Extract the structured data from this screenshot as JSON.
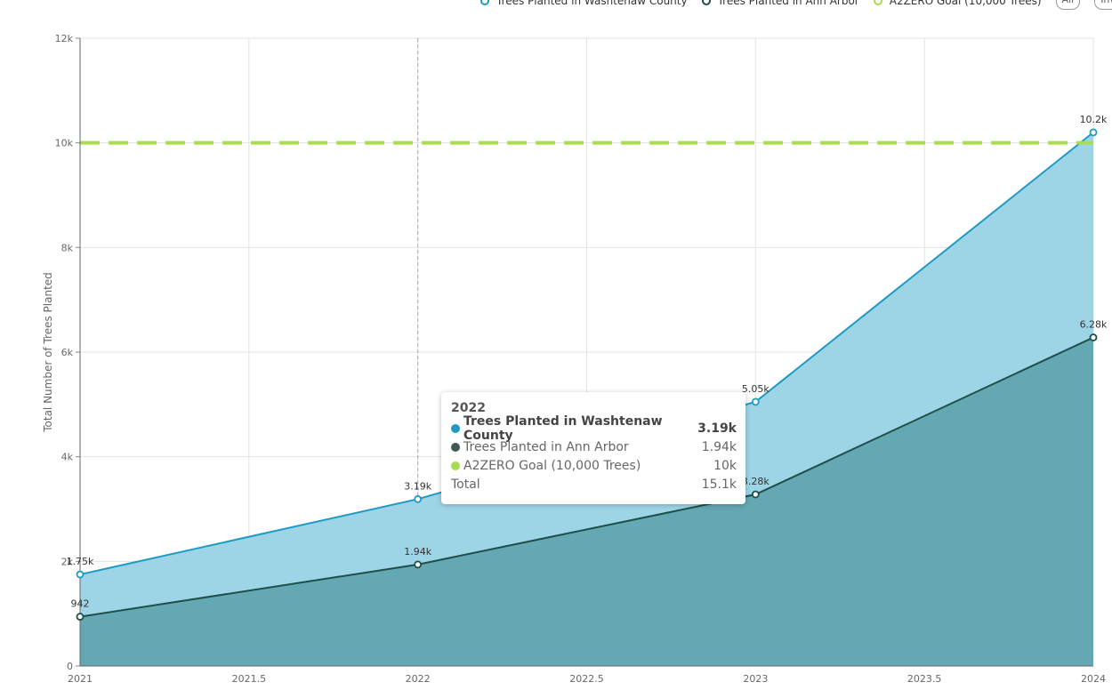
{
  "chart_data": {
    "type": "area",
    "title": "",
    "xlabel": "",
    "ylabel": "Total Number of Trees Planted",
    "xlim": [
      2021,
      2024
    ],
    "ylim": [
      0,
      12000
    ],
    "x_ticks": [
      "2021",
      "2021.5",
      "2022",
      "2022.5",
      "2023",
      "2023.5",
      "2024"
    ],
    "y_ticks": [
      "0",
      "2k",
      "4k",
      "6k",
      "8k",
      "10k",
      "12k"
    ],
    "x": [
      2021,
      2022,
      2023,
      2024
    ],
    "series": [
      {
        "name": "Trees Planted in Washtenaw County",
        "color": "#1f9ac4",
        "fill": "#9dd4e6",
        "values": [
          1750,
          3190,
          5050,
          10200
        ],
        "labels": [
          "1.75k",
          "3.19k",
          "5.05k",
          "10.2k"
        ]
      },
      {
        "name": "Trees Planted in Ann Arbor",
        "color": "#1f4f4a",
        "fill": "#64a8b4",
        "values": [
          942,
          1940,
          3280,
          6280
        ],
        "labels": [
          "942",
          "1.94k",
          "3.28k",
          "6.28k"
        ]
      },
      {
        "name": "A2ZERO Goal (10,000 Trees)",
        "color": "#a8dd4f",
        "dashed": true,
        "values": [
          10000,
          10000,
          10000,
          10000
        ]
      }
    ],
    "legend_position": "top-right",
    "grid": true
  },
  "legend": {
    "items": [
      {
        "label": "Trees Planted in Washtenaw County",
        "color": "#1f9ac4"
      },
      {
        "label": "Trees Planted in Ann Arbor",
        "color": "#1f4f4a"
      },
      {
        "label": "A2ZERO Goal (10,000 Trees)",
        "color": "#a8dd4f"
      }
    ],
    "btn_all": "All",
    "btn_inv": "Inv"
  },
  "tooltip": {
    "title": "2022",
    "rows": [
      {
        "label": "Trees Planted in Washtenaw County",
        "value": "3.19k",
        "color": "#1f9ac4"
      },
      {
        "label": "Trees Planted in Ann Arbor",
        "value": "1.94k",
        "color": "#3d5a57"
      },
      {
        "label": "A2ZERO Goal (10,000 Trees)",
        "value": "10k",
        "color": "#a8dd4f"
      }
    ],
    "total_label": "Total",
    "total_value": "15.1k"
  }
}
